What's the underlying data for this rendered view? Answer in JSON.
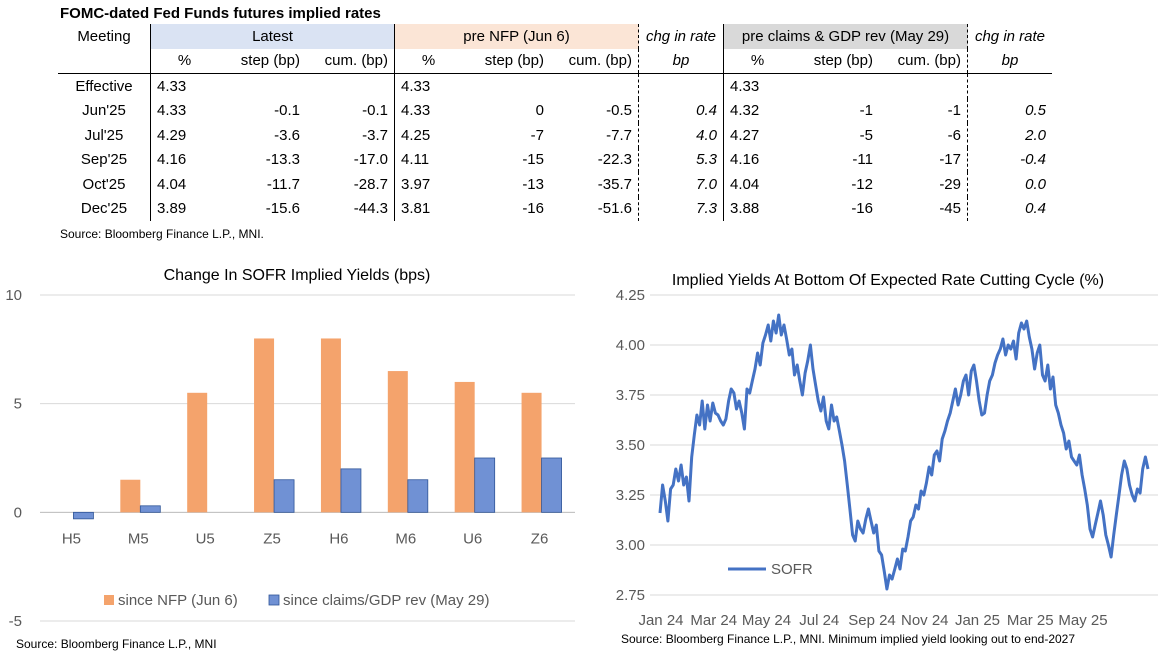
{
  "table": {
    "title": "FOMC-dated Fed Funds futures implied rates",
    "group_headers": {
      "meeting": "Meeting",
      "latest": "Latest",
      "nfp": "pre NFP (Jun 6)",
      "chg1": "chg in rate",
      "claims": "pre claims & GDP rev (May 29)",
      "chg2": "chg in rate"
    },
    "sub_headers": {
      "pct": "%",
      "step": "step (bp)",
      "cum": "cum. (bp)",
      "bp": "bp"
    },
    "rows": [
      {
        "meeting": "Effective",
        "latest_pct": "4.33",
        "latest_step": "",
        "latest_cum": "",
        "nfp_pct": "4.33",
        "nfp_step": "",
        "nfp_cum": "",
        "chg1": "",
        "claims_pct": "4.33",
        "claims_step": "",
        "claims_cum": "",
        "chg2": ""
      },
      {
        "meeting": "Jun'25",
        "latest_pct": "4.33",
        "latest_step": "-0.1",
        "latest_cum": "-0.1",
        "nfp_pct": "4.33",
        "nfp_step": "0",
        "nfp_cum": "-0.5",
        "chg1": "0.4",
        "claims_pct": "4.32",
        "claims_step": "-1",
        "claims_cum": "-1",
        "chg2": "0.5"
      },
      {
        "meeting": "Jul'25",
        "latest_pct": "4.29",
        "latest_step": "-3.6",
        "latest_cum": "-3.7",
        "nfp_pct": "4.25",
        "nfp_step": "-7",
        "nfp_cum": "-7.7",
        "chg1": "4.0",
        "claims_pct": "4.27",
        "claims_step": "-5",
        "claims_cum": "-6",
        "chg2": "2.0"
      },
      {
        "meeting": "Sep'25",
        "latest_pct": "4.16",
        "latest_step": "-13.3",
        "latest_cum": "-17.0",
        "nfp_pct": "4.11",
        "nfp_step": "-15",
        "nfp_cum": "-22.3",
        "chg1": "5.3",
        "claims_pct": "4.16",
        "claims_step": "-11",
        "claims_cum": "-17",
        "chg2": "-0.4"
      },
      {
        "meeting": "Oct'25",
        "latest_pct": "4.04",
        "latest_step": "-11.7",
        "latest_cum": "-28.7",
        "nfp_pct": "3.97",
        "nfp_step": "-13",
        "nfp_cum": "-35.7",
        "chg1": "7.0",
        "claims_pct": "4.04",
        "claims_step": "-12",
        "claims_cum": "-29",
        "chg2": "0.0"
      },
      {
        "meeting": "Dec'25",
        "latest_pct": "3.89",
        "latest_step": "-15.6",
        "latest_cum": "-44.3",
        "nfp_pct": "3.81",
        "nfp_step": "-16",
        "nfp_cum": "-51.6",
        "chg1": "7.3",
        "claims_pct": "3.88",
        "claims_step": "-16",
        "claims_cum": "-45",
        "chg2": "0.4"
      }
    ],
    "source": "Source: Bloomberg Finance L.P., MNI."
  },
  "colors": {
    "orange": "#f4a36c",
    "blue": "#7091d4",
    "blue_line": "#4472c4",
    "grid": "#d9d9d9",
    "axis_text": "#595959"
  },
  "chart_data": [
    {
      "type": "bar",
      "title": "Change In SOFR Implied Yields (bps)",
      "categories": [
        "H5",
        "M5",
        "U5",
        "Z5",
        "H6",
        "M6",
        "U6",
        "Z6"
      ],
      "series": [
        {
          "name": "since NFP (Jun 6)",
          "values": [
            0,
            1.5,
            5.5,
            8,
            8,
            6.5,
            6,
            5.5
          ]
        },
        {
          "name": "since claims/GDP rev (May 29)",
          "values": [
            -0.3,
            0.3,
            0,
            1.5,
            2,
            1.5,
            2.5,
            2.5
          ]
        }
      ],
      "ylim": [
        -5,
        10
      ],
      "yticks": [
        -5,
        0,
        5,
        10
      ],
      "legend": "bottom",
      "source": "Source: Bloomberg Finance L.P., MNI"
    },
    {
      "type": "line",
      "title": "Implied Yields At Bottom Of Expected Rate Cutting Cycle (%)",
      "series": [
        {
          "name": "SOFR",
          "values": [
            3.16,
            3.3,
            3.22,
            3.12,
            3.28,
            3.3,
            3.38,
            3.32,
            3.4,
            3.3,
            3.34,
            3.22,
            3.44,
            3.55,
            3.65,
            3.6,
            3.72,
            3.58,
            3.7,
            3.62,
            3.71,
            3.66,
            3.65,
            3.62,
            3.6,
            3.63,
            3.72,
            3.78,
            3.76,
            3.68,
            3.72,
            3.66,
            3.58,
            3.78,
            3.76,
            3.82,
            3.88,
            3.96,
            3.9,
            4.01,
            4.05,
            4.1,
            4.02,
            4.12,
            4.06,
            4.15,
            4.05,
            4.1,
            4.03,
            3.95,
            3.98,
            3.85,
            3.9,
            3.82,
            3.75,
            3.86,
            3.92,
            4.0,
            3.88,
            3.8,
            3.72,
            3.67,
            3.74,
            3.62,
            3.58,
            3.7,
            3.62,
            3.64,
            3.57,
            3.5,
            3.42,
            3.3,
            3.18,
            3.05,
            3.02,
            3.12,
            3.08,
            3.06,
            3.13,
            3.18,
            3.12,
            3.06,
            3.1,
            2.97,
            2.95,
            2.87,
            2.78,
            2.85,
            2.83,
            2.88,
            2.93,
            2.88,
            2.98,
            2.97,
            3.04,
            3.12,
            3.14,
            3.2,
            3.18,
            3.27,
            3.25,
            3.31,
            3.39,
            3.35,
            3.45,
            3.47,
            3.42,
            3.53,
            3.57,
            3.62,
            3.66,
            3.72,
            3.78,
            3.7,
            3.75,
            3.82,
            3.85,
            3.75,
            3.87,
            3.9,
            3.82,
            3.72,
            3.65,
            3.66,
            3.75,
            3.82,
            3.85,
            3.91,
            3.95,
            3.98,
            4.03,
            3.95,
            4.0,
            3.98,
            4.02,
            3.93,
            4.06,
            4.11,
            4.08,
            4.12,
            4.04,
            3.98,
            3.88,
            3.96,
            4.0,
            3.85,
            3.82,
            3.9,
            3.78,
            3.84,
            3.7,
            3.66,
            3.6,
            3.56,
            3.48,
            3.52,
            3.44,
            3.42,
            3.4,
            3.45,
            3.35,
            3.28,
            3.2,
            3.08,
            3.04,
            3.1,
            3.16,
            3.22,
            3.15,
            3.05,
            3.0,
            2.94,
            3.05,
            3.15,
            3.25,
            3.35,
            3.42,
            3.38,
            3.3,
            3.25,
            3.22,
            3.28,
            3.26,
            3.38,
            3.44,
            3.38
          ]
        }
      ],
      "xlabels": [
        "Jan 24",
        "Mar 24",
        "May 24",
        "Jul 24",
        "Sep 24",
        "Nov 24",
        "Jan 25",
        "Mar 25",
        "May 25"
      ],
      "ylim": [
        2.75,
        4.25
      ],
      "yticks": [
        "2.75",
        "3.00",
        "3.25",
        "3.50",
        "3.75",
        "4.00",
        "4.25"
      ],
      "legend": "bottom-left",
      "source": "Source: Bloomberg Finance L.P., MNI. Minimum implied yield looking out to end-2027"
    }
  ]
}
